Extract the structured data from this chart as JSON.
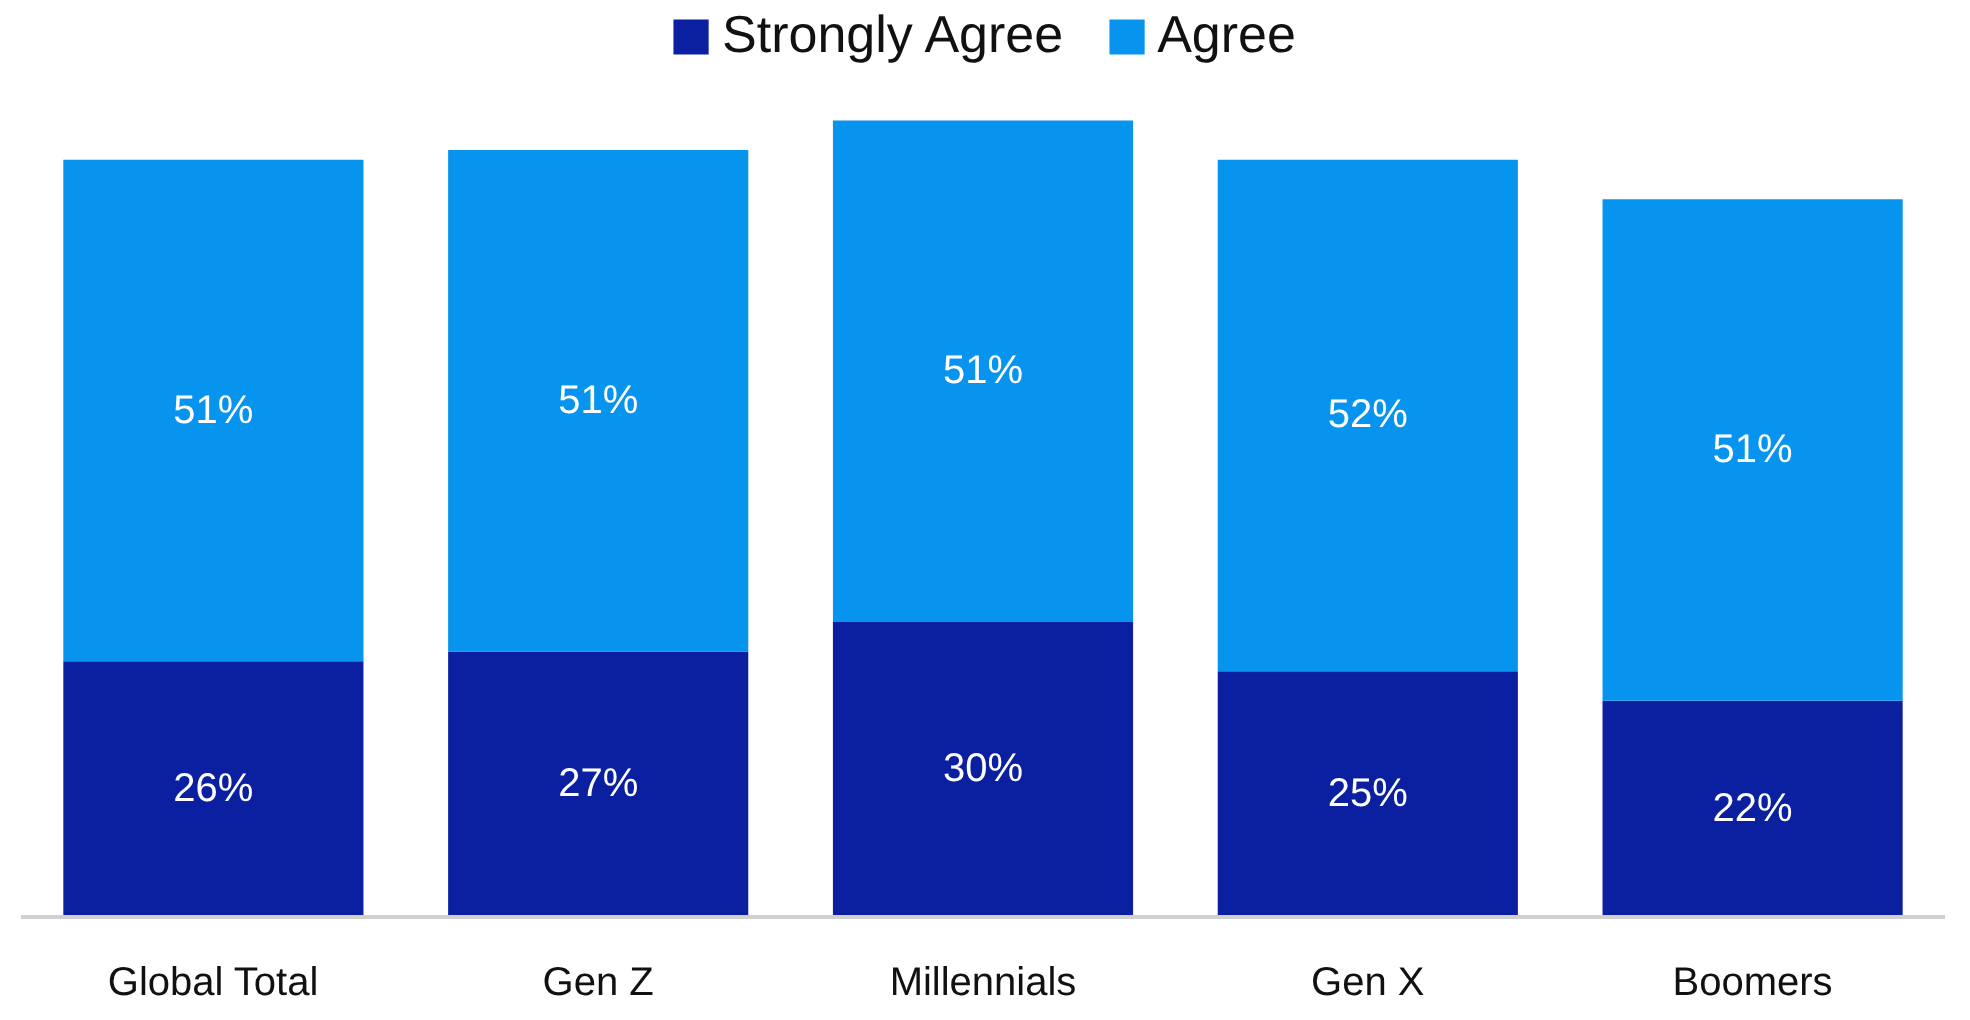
{
  "chart_data": {
    "type": "bar",
    "stacked": true,
    "categories": [
      "Global Total",
      "Gen Z",
      "Millennials",
      "Gen X",
      "Boomers"
    ],
    "series": [
      {
        "name": "Strongly Agree",
        "color": "#0a20a0",
        "values": [
          26,
          27,
          30,
          25,
          22
        ],
        "value_labels": [
          "26%",
          "27%",
          "30%",
          "25%",
          "22%"
        ]
      },
      {
        "name": "Agree",
        "color": "#0794ee",
        "values": [
          51,
          51,
          51,
          52,
          51
        ],
        "value_labels": [
          "51%",
          "51%",
          "51%",
          "52%",
          "51%"
        ]
      }
    ],
    "legend": "top"
  }
}
